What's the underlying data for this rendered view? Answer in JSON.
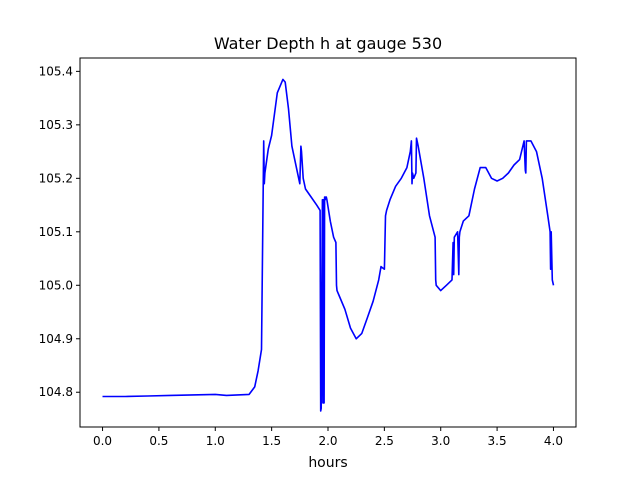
{
  "chart_data": {
    "type": "line",
    "title": "Water Depth h at gauge 530",
    "xlabel": "hours",
    "ylabel": "",
    "xlim": [
      -0.2,
      4.2
    ],
    "ylim": [
      104.735,
      105.425
    ],
    "xticks": [
      0.0,
      0.5,
      1.0,
      1.5,
      2.0,
      2.5,
      3.0,
      3.5,
      4.0
    ],
    "xtick_labels": [
      "0.0",
      "0.5",
      "1.0",
      "1.5",
      "2.0",
      "2.5",
      "3.0",
      "3.5",
      "4.0"
    ],
    "yticks": [
      104.8,
      104.9,
      105.0,
      105.1,
      105.2,
      105.3,
      105.4
    ],
    "ytick_labels": [
      "104.8",
      "104.9",
      "105.0",
      "105.1",
      "105.2",
      "105.3",
      "105.4"
    ],
    "grid": false,
    "series": [
      {
        "color": "#0000ff",
        "x": [
          0.0,
          0.2,
          0.4,
          0.6,
          0.8,
          1.0,
          1.1,
          1.2,
          1.3,
          1.35,
          1.38,
          1.41,
          1.43,
          1.435,
          1.44,
          1.47,
          1.5,
          1.55,
          1.6,
          1.62,
          1.65,
          1.68,
          1.72,
          1.75,
          1.76,
          1.765,
          1.78,
          1.8,
          1.85,
          1.9,
          1.93,
          1.935,
          1.94,
          1.95,
          1.955,
          1.96,
          1.965,
          1.97,
          1.975,
          1.98,
          1.985,
          1.99,
          2.02,
          2.05,
          2.07,
          2.075,
          2.08,
          2.1,
          2.15,
          2.2,
          2.25,
          2.3,
          2.35,
          2.4,
          2.45,
          2.47,
          2.5,
          2.51,
          2.52,
          2.55,
          2.6,
          2.65,
          2.7,
          2.73,
          2.74,
          2.745,
          2.75,
          2.76,
          2.78,
          2.785,
          2.79,
          2.8,
          2.85,
          2.9,
          2.95,
          2.955,
          2.96,
          3.0,
          3.05,
          3.1,
          3.11,
          3.115,
          3.12,
          3.15,
          3.16,
          3.165,
          3.17,
          3.2,
          3.25,
          3.3,
          3.35,
          3.4,
          3.45,
          3.5,
          3.55,
          3.6,
          3.65,
          3.7,
          3.74,
          3.75,
          3.755,
          3.76,
          3.78,
          3.8,
          3.85,
          3.9,
          3.95,
          3.97,
          3.975,
          3.98,
          3.99,
          4.0
        ],
        "y": [
          104.792,
          104.792,
          104.793,
          104.794,
          104.795,
          104.796,
          104.794,
          104.795,
          104.796,
          104.81,
          104.84,
          104.88,
          105.27,
          105.19,
          105.21,
          105.255,
          105.28,
          105.36,
          105.385,
          105.38,
          105.33,
          105.26,
          105.22,
          105.19,
          105.26,
          105.25,
          105.2,
          105.18,
          105.165,
          105.15,
          105.14,
          104.765,
          104.77,
          105.16,
          104.78,
          105.16,
          104.78,
          105.165,
          105.16,
          105.165,
          105.165,
          105.16,
          105.12,
          105.09,
          105.08,
          105.0,
          104.99,
          104.98,
          104.955,
          104.92,
          104.9,
          104.91,
          104.94,
          104.97,
          105.01,
          105.035,
          105.03,
          105.13,
          105.14,
          105.16,
          105.185,
          105.2,
          105.22,
          105.25,
          105.27,
          105.19,
          105.21,
          105.2,
          105.21,
          105.275,
          105.27,
          105.26,
          105.2,
          105.13,
          105.09,
          105.01,
          105.0,
          104.99,
          105.0,
          105.01,
          105.08,
          105.02,
          105.09,
          105.1,
          105.02,
          105.09,
          105.1,
          105.12,
          105.13,
          105.18,
          105.22,
          105.22,
          105.2,
          105.195,
          105.2,
          105.21,
          105.225,
          105.235,
          105.27,
          105.215,
          105.21,
          105.27,
          105.27,
          105.27,
          105.25,
          105.2,
          105.13,
          105.1,
          105.03,
          105.1,
          105.01,
          105.0
        ]
      }
    ]
  }
}
